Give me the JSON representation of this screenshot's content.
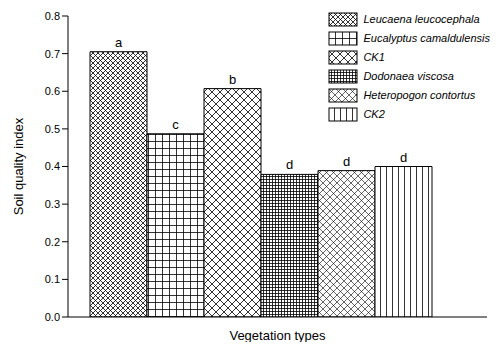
{
  "chart_data": {
    "type": "bar",
    "x_label": "Vegetation types",
    "y_label": "Soil quality index",
    "categories": [
      "Leucaena leucocephala",
      "Eucalyptus camaldulensis",
      "CK1",
      "Dodonaea viscosa",
      "Heteropogon contortus",
      "CK2"
    ],
    "values": [
      0.705,
      0.487,
      0.607,
      0.379,
      0.389,
      0.4
    ],
    "annotations": [
      "a",
      "c",
      "b",
      "d",
      "d",
      "d"
    ],
    "color": "#000000",
    "ylim": [
      0,
      0.8
    ],
    "yticks": [
      {
        "value": 0,
        "label": "0.0"
      },
      0.1,
      0.2,
      0.3,
      0.4,
      0.5,
      0.6,
      0.7,
      0.8
    ],
    "grid": false,
    "legend": "upper right",
    "tick_labels": "y"
  }
}
